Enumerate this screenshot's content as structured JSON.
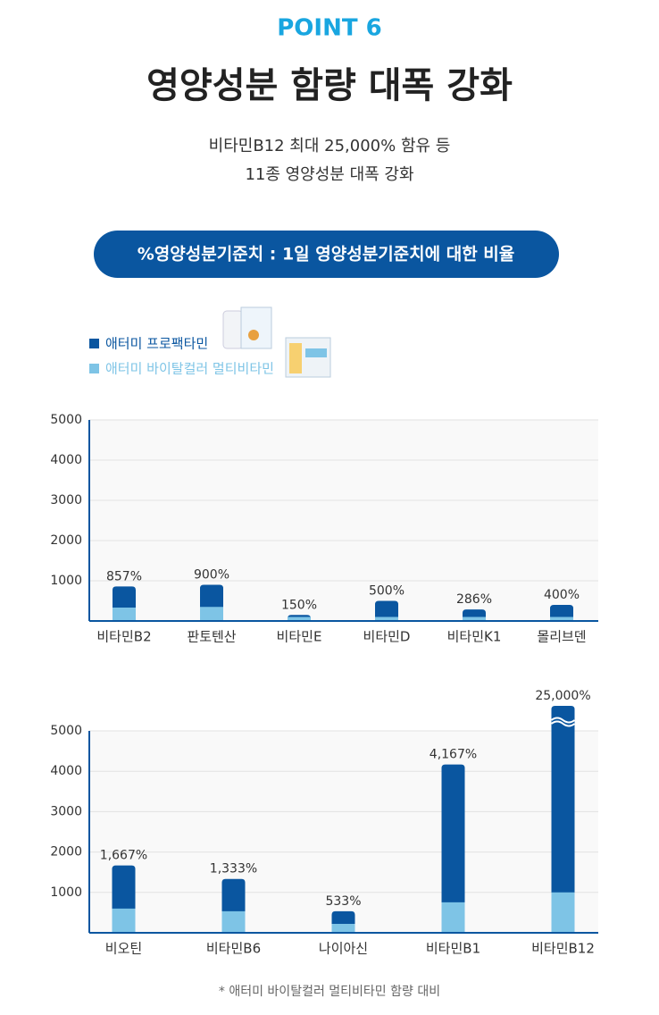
{
  "header": {
    "point": "POINT 6",
    "title": "영양성분 함량 대폭 강화",
    "subtitle_lines": [
      "비타민B12 최대 25,000% 함유 등",
      "11종 영양성분 대폭 강화"
    ],
    "banner": "%영양성분기준치 : 1일 영양성분기준치에 대한 비율"
  },
  "chart_data": [
    {
      "type": "bar",
      "categories": [
        "비타민B2",
        "판토텐산",
        "비타민E",
        "비타민D",
        "비타민K1",
        "몰리브덴"
      ],
      "series": [
        {
          "name": "애터미 프로팩타민",
          "color": "#0a56a0",
          "values": [
            857,
            900,
            150,
            500,
            286,
            400
          ],
          "value_labels": [
            "857%",
            "900%",
            "150%",
            "500%",
            "286%",
            "400%"
          ]
        },
        {
          "name": "애터미 바이탈컬러 멀티비타민",
          "color": "#7ec4e6",
          "values": [
            333,
            350,
            100,
            100,
            100,
            100
          ]
        }
      ],
      "ylim": [
        0,
        5000
      ],
      "yticks": [
        1000,
        2000,
        3000,
        4000,
        5000
      ],
      "grid": true
    },
    {
      "type": "bar",
      "categories": [
        "비오틴",
        "비타민B6",
        "나이아신",
        "비타민B1",
        "비타민B12"
      ],
      "series": [
        {
          "color": "#0a56a0",
          "values": [
            1667,
            1333,
            533,
            4167,
            25000
          ],
          "value_labels": [
            "1,667%",
            "1,333%",
            "533%",
            "4,167%",
            "25,000%"
          ]
        },
        {
          "color": "#7ec4e6",
          "values": [
            600,
            533,
            222,
            756,
            1000
          ]
        }
      ],
      "ylim": [
        0,
        5000
      ],
      "yticks": [
        1000,
        2000,
        3000,
        4000,
        5000
      ],
      "grid": true
    }
  ],
  "footnote": "* 애터미 바이탈컬러 멀티비타민 함량 대비"
}
